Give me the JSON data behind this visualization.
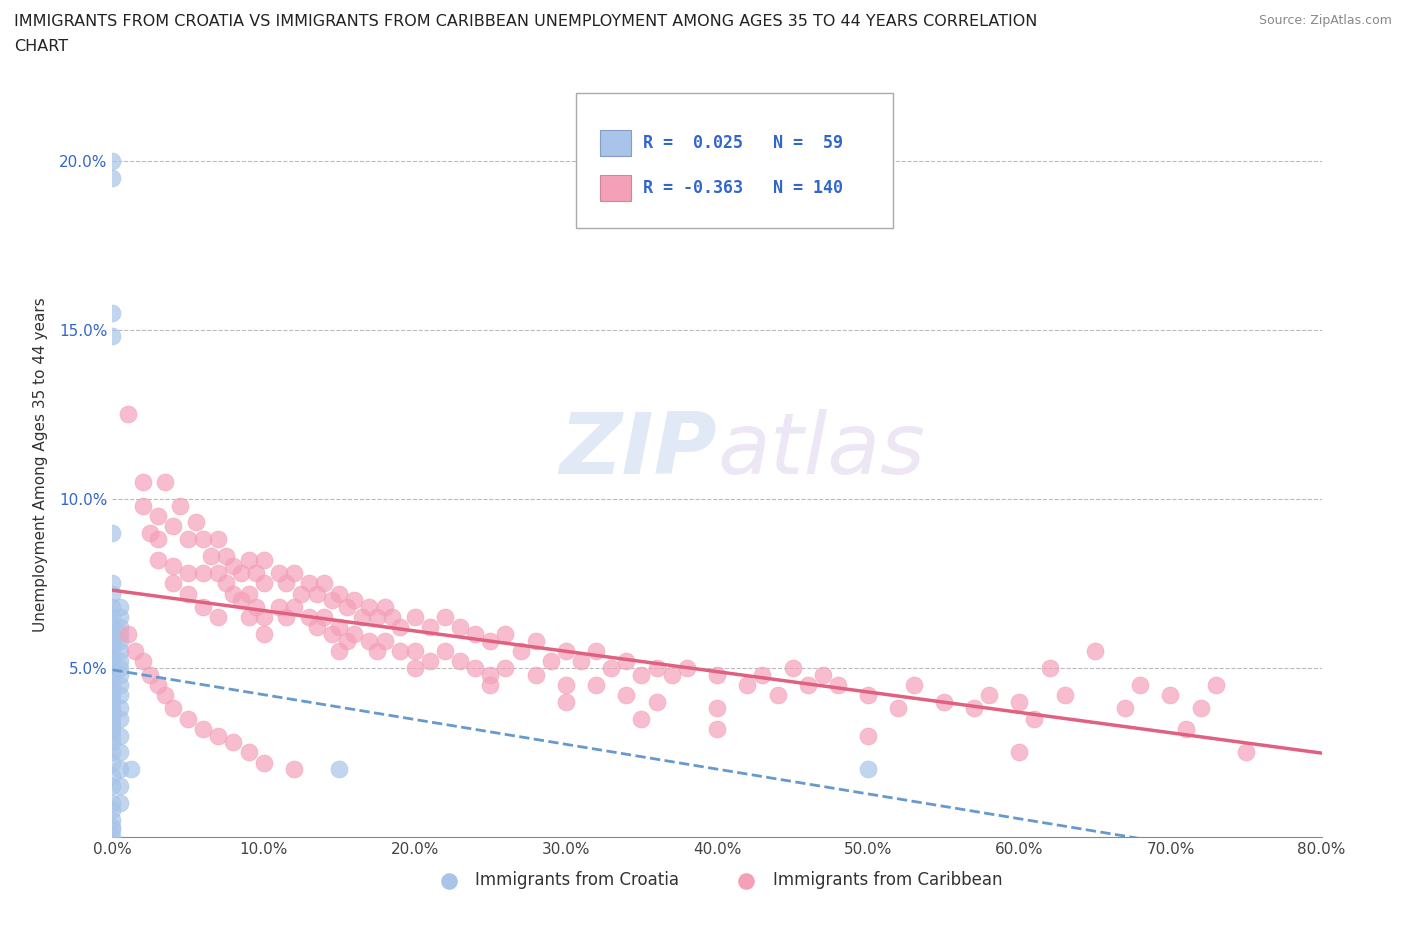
{
  "title_line1": "IMMIGRANTS FROM CROATIA VS IMMIGRANTS FROM CARIBBEAN UNEMPLOYMENT AMONG AGES 35 TO 44 YEARS CORRELATION",
  "title_line2": "CHART",
  "source": "Source: ZipAtlas.com",
  "ylabel": "Unemployment Among Ages 35 to 44 years",
  "xlim": [
    0.0,
    0.8
  ],
  "ylim": [
    0.0,
    0.22
  ],
  "xticks": [
    0.0,
    0.1,
    0.2,
    0.3,
    0.4,
    0.5,
    0.6,
    0.7,
    0.8
  ],
  "xticklabels": [
    "0.0%",
    "10.0%",
    "20.0%",
    "30.0%",
    "40.0%",
    "50.0%",
    "60.0%",
    "70.0%",
    "80.0%"
  ],
  "yticks": [
    0.05,
    0.1,
    0.15,
    0.2
  ],
  "yticklabels": [
    "5.0%",
    "10.0%",
    "15.0%",
    "20.0%"
  ],
  "croatia_color": "#a8c4e8",
  "caribbean_color": "#f4a0b8",
  "trend_croatia_color": "#6699cc",
  "trend_caribbean_color": "#e06080",
  "croatia_points": [
    [
      0.0,
      0.2
    ],
    [
      0.0,
      0.195
    ],
    [
      0.0,
      0.155
    ],
    [
      0.0,
      0.148
    ],
    [
      0.0,
      0.09
    ],
    [
      0.0,
      0.075
    ],
    [
      0.0,
      0.072
    ],
    [
      0.0,
      0.068
    ],
    [
      0.0,
      0.065
    ],
    [
      0.0,
      0.063
    ],
    [
      0.0,
      0.06
    ],
    [
      0.0,
      0.058
    ],
    [
      0.0,
      0.057
    ],
    [
      0.0,
      0.055
    ],
    [
      0.0,
      0.053
    ],
    [
      0.0,
      0.052
    ],
    [
      0.0,
      0.05
    ],
    [
      0.0,
      0.048
    ],
    [
      0.0,
      0.047
    ],
    [
      0.0,
      0.045
    ],
    [
      0.0,
      0.043
    ],
    [
      0.0,
      0.042
    ],
    [
      0.0,
      0.04
    ],
    [
      0.0,
      0.038
    ],
    [
      0.0,
      0.037
    ],
    [
      0.0,
      0.035
    ],
    [
      0.0,
      0.033
    ],
    [
      0.0,
      0.032
    ],
    [
      0.0,
      0.03
    ],
    [
      0.0,
      0.028
    ],
    [
      0.0,
      0.025
    ],
    [
      0.0,
      0.022
    ],
    [
      0.0,
      0.018
    ],
    [
      0.0,
      0.015
    ],
    [
      0.0,
      0.01
    ],
    [
      0.0,
      0.008
    ],
    [
      0.0,
      0.005
    ],
    [
      0.0,
      0.003
    ],
    [
      0.005,
      0.068
    ],
    [
      0.005,
      0.065
    ],
    [
      0.005,
      0.062
    ],
    [
      0.005,
      0.06
    ],
    [
      0.005,
      0.058
    ],
    [
      0.005,
      0.055
    ],
    [
      0.005,
      0.052
    ],
    [
      0.005,
      0.05
    ],
    [
      0.005,
      0.048
    ],
    [
      0.005,
      0.045
    ],
    [
      0.005,
      0.042
    ],
    [
      0.005,
      0.038
    ],
    [
      0.005,
      0.035
    ],
    [
      0.005,
      0.03
    ],
    [
      0.005,
      0.025
    ],
    [
      0.005,
      0.02
    ],
    [
      0.005,
      0.015
    ],
    [
      0.005,
      0.01
    ],
    [
      0.012,
      0.02
    ],
    [
      0.15,
      0.02
    ],
    [
      0.5,
      0.02
    ],
    [
      0.0,
      0.0
    ],
    [
      0.0,
      0.002
    ]
  ],
  "caribbean_points": [
    [
      0.01,
      0.125
    ],
    [
      0.02,
      0.105
    ],
    [
      0.03,
      0.095
    ],
    [
      0.03,
      0.088
    ],
    [
      0.035,
      0.105
    ],
    [
      0.04,
      0.092
    ],
    [
      0.04,
      0.08
    ],
    [
      0.045,
      0.098
    ],
    [
      0.05,
      0.088
    ],
    [
      0.05,
      0.078
    ],
    [
      0.055,
      0.093
    ],
    [
      0.06,
      0.088
    ],
    [
      0.06,
      0.078
    ],
    [
      0.065,
      0.083
    ],
    [
      0.07,
      0.088
    ],
    [
      0.07,
      0.078
    ],
    [
      0.075,
      0.083
    ],
    [
      0.075,
      0.075
    ],
    [
      0.08,
      0.08
    ],
    [
      0.08,
      0.072
    ],
    [
      0.085,
      0.078
    ],
    [
      0.085,
      0.07
    ],
    [
      0.09,
      0.082
    ],
    [
      0.09,
      0.072
    ],
    [
      0.09,
      0.065
    ],
    [
      0.095,
      0.078
    ],
    [
      0.095,
      0.068
    ],
    [
      0.1,
      0.082
    ],
    [
      0.1,
      0.075
    ],
    [
      0.1,
      0.065
    ],
    [
      0.11,
      0.078
    ],
    [
      0.11,
      0.068
    ],
    [
      0.115,
      0.075
    ],
    [
      0.115,
      0.065
    ],
    [
      0.12,
      0.078
    ],
    [
      0.12,
      0.068
    ],
    [
      0.125,
      0.072
    ],
    [
      0.13,
      0.075
    ],
    [
      0.13,
      0.065
    ],
    [
      0.135,
      0.072
    ],
    [
      0.135,
      0.062
    ],
    [
      0.14,
      0.075
    ],
    [
      0.14,
      0.065
    ],
    [
      0.145,
      0.07
    ],
    [
      0.145,
      0.06
    ],
    [
      0.15,
      0.072
    ],
    [
      0.15,
      0.062
    ],
    [
      0.155,
      0.068
    ],
    [
      0.155,
      0.058
    ],
    [
      0.16,
      0.07
    ],
    [
      0.16,
      0.06
    ],
    [
      0.165,
      0.065
    ],
    [
      0.17,
      0.068
    ],
    [
      0.17,
      0.058
    ],
    [
      0.175,
      0.065
    ],
    [
      0.175,
      0.055
    ],
    [
      0.18,
      0.068
    ],
    [
      0.18,
      0.058
    ],
    [
      0.185,
      0.065
    ],
    [
      0.19,
      0.062
    ],
    [
      0.19,
      0.055
    ],
    [
      0.2,
      0.065
    ],
    [
      0.2,
      0.055
    ],
    [
      0.21,
      0.062
    ],
    [
      0.21,
      0.052
    ],
    [
      0.22,
      0.065
    ],
    [
      0.22,
      0.055
    ],
    [
      0.23,
      0.062
    ],
    [
      0.23,
      0.052
    ],
    [
      0.24,
      0.06
    ],
    [
      0.24,
      0.05
    ],
    [
      0.25,
      0.058
    ],
    [
      0.25,
      0.048
    ],
    [
      0.26,
      0.06
    ],
    [
      0.26,
      0.05
    ],
    [
      0.27,
      0.055
    ],
    [
      0.28,
      0.058
    ],
    [
      0.28,
      0.048
    ],
    [
      0.29,
      0.052
    ],
    [
      0.3,
      0.055
    ],
    [
      0.3,
      0.045
    ],
    [
      0.31,
      0.052
    ],
    [
      0.32,
      0.055
    ],
    [
      0.32,
      0.045
    ],
    [
      0.33,
      0.05
    ],
    [
      0.34,
      0.052
    ],
    [
      0.34,
      0.042
    ],
    [
      0.35,
      0.048
    ],
    [
      0.36,
      0.05
    ],
    [
      0.36,
      0.04
    ],
    [
      0.37,
      0.048
    ],
    [
      0.38,
      0.05
    ],
    [
      0.4,
      0.048
    ],
    [
      0.4,
      0.038
    ],
    [
      0.42,
      0.045
    ],
    [
      0.43,
      0.048
    ],
    [
      0.44,
      0.042
    ],
    [
      0.45,
      0.05
    ],
    [
      0.46,
      0.045
    ],
    [
      0.47,
      0.048
    ],
    [
      0.48,
      0.045
    ],
    [
      0.5,
      0.042
    ],
    [
      0.52,
      0.038
    ],
    [
      0.53,
      0.045
    ],
    [
      0.55,
      0.04
    ],
    [
      0.57,
      0.038
    ],
    [
      0.58,
      0.042
    ],
    [
      0.6,
      0.04
    ],
    [
      0.61,
      0.035
    ],
    [
      0.62,
      0.05
    ],
    [
      0.63,
      0.042
    ],
    [
      0.65,
      0.055
    ],
    [
      0.67,
      0.038
    ],
    [
      0.68,
      0.045
    ],
    [
      0.7,
      0.042
    ],
    [
      0.71,
      0.032
    ],
    [
      0.72,
      0.038
    ],
    [
      0.73,
      0.045
    ],
    [
      0.75,
      0.025
    ],
    [
      0.02,
      0.098
    ],
    [
      0.025,
      0.09
    ],
    [
      0.03,
      0.082
    ],
    [
      0.04,
      0.075
    ],
    [
      0.05,
      0.072
    ],
    [
      0.06,
      0.068
    ],
    [
      0.07,
      0.065
    ],
    [
      0.1,
      0.06
    ],
    [
      0.15,
      0.055
    ],
    [
      0.2,
      0.05
    ],
    [
      0.25,
      0.045
    ],
    [
      0.3,
      0.04
    ],
    [
      0.35,
      0.035
    ],
    [
      0.4,
      0.032
    ],
    [
      0.5,
      0.03
    ],
    [
      0.6,
      0.025
    ],
    [
      0.01,
      0.06
    ],
    [
      0.015,
      0.055
    ],
    [
      0.02,
      0.052
    ],
    [
      0.025,
      0.048
    ],
    [
      0.03,
      0.045
    ],
    [
      0.035,
      0.042
    ],
    [
      0.04,
      0.038
    ],
    [
      0.05,
      0.035
    ],
    [
      0.06,
      0.032
    ],
    [
      0.07,
      0.03
    ],
    [
      0.08,
      0.028
    ],
    [
      0.09,
      0.025
    ],
    [
      0.1,
      0.022
    ],
    [
      0.12,
      0.02
    ]
  ]
}
